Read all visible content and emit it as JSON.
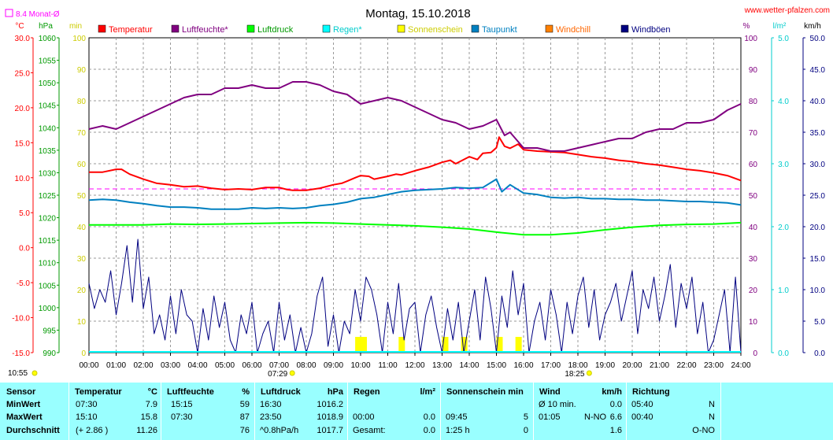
{
  "header": {
    "title": "Montag, 15.10.2018",
    "site": "www.wetter-pfalzen.com",
    "month_avg_label": "8.4 Monat-Ø"
  },
  "axes": {
    "temp": {
      "unit": "°C",
      "ticks": [
        "30.0",
        "25.0",
        "20.0",
        "15.0",
        "10.0",
        "5.0",
        "0.0",
        "-5.0",
        "-10.0",
        "-15.0"
      ],
      "color": "#ff0000"
    },
    "pressure": {
      "unit": "hPa",
      "ticks": [
        "1060",
        "1055",
        "1050",
        "1045",
        "1040",
        "1035",
        "1030",
        "1025",
        "1020",
        "1015",
        "1010",
        "1005",
        "1000",
        "995",
        "990"
      ],
      "color": "#009900"
    },
    "minutes": {
      "unit": "min",
      "ticks": [
        "100",
        "90",
        "80",
        "70",
        "60",
        "50",
        "40",
        "30",
        "20",
        "10",
        "0"
      ],
      "color": "#cccc00"
    },
    "humidity": {
      "unit": "%",
      "ticks": [
        "100",
        "90",
        "80",
        "70",
        "60",
        "50",
        "40",
        "30",
        "20",
        "10",
        "0"
      ],
      "color": "#800080"
    },
    "rain": {
      "unit": "l/m²",
      "ticks": [
        "5.0",
        "4.0",
        "3.0",
        "2.0",
        "1.0",
        "0.0"
      ],
      "color": "#00cccc"
    },
    "wind": {
      "unit": "km/h",
      "ticks": [
        "50.0",
        "45.0",
        "40.0",
        "35.0",
        "30.0",
        "25.0",
        "20.0",
        "15.0",
        "10.0",
        "5.0",
        "0.0"
      ],
      "color": "#000080"
    },
    "time_ticks": [
      "00:00",
      "01:00",
      "02:00",
      "03:00",
      "04:00",
      "05:00",
      "06:00",
      "07:00",
      "08:00",
      "09:00",
      "10:00",
      "11:00",
      "12:00",
      "13:00",
      "14:00",
      "15:00",
      "16:00",
      "17:00",
      "18:00",
      "19:00",
      "20:00",
      "21:00",
      "22:00",
      "23:00",
      "24:00"
    ],
    "sunshine_total": "10:55",
    "sunrise": "07:29",
    "sunset": "18:25"
  },
  "legend": [
    {
      "label": "Temperatur",
      "color": "#ff0000",
      "text_color": "#ff0000"
    },
    {
      "label": "Luftfeuchte*",
      "color": "#800080",
      "text_color": "#800080"
    },
    {
      "label": "Luftdruck",
      "color": "#00ff00",
      "text_color": "#009900"
    },
    {
      "label": "Regen*",
      "color": "#00ffff",
      "text_color": "#00cccc"
    },
    {
      "label": "Sonnenschein",
      "color": "#ffff00",
      "text_color": "#cccc00"
    },
    {
      "label": "Taupunkt",
      "color": "#0080c0",
      "text_color": "#0080c0"
    },
    {
      "label": "Windchill",
      "color": "#ff8000",
      "text_color": "#ff6600"
    },
    {
      "label": "Windböen",
      "color": "#000080",
      "text_color": "#000080"
    }
  ],
  "chart_data": {
    "type": "line",
    "x_range": [
      "00:00",
      "24:00"
    ],
    "grid": true,
    "month_average_temperature": 8.4,
    "series": [
      {
        "name": "Temperatur",
        "unit": "°C",
        "color": "#ff0000",
        "x": [
          0,
          0.5,
          1,
          1.2,
          1.5,
          2,
          2.5,
          3,
          3.5,
          4,
          4.5,
          5,
          5.5,
          6,
          6.5,
          7,
          7.3,
          7.5,
          8,
          8.5,
          9,
          9.3,
          9.5,
          9.8,
          10,
          10.3,
          10.5,
          11,
          11.3,
          11.5,
          12,
          12.5,
          13,
          13.3,
          13.5,
          14,
          14.3,
          14.5,
          14.8,
          15,
          15.1,
          15.3,
          15.5,
          15.8,
          16,
          16.5,
          17,
          17.5,
          18,
          18.5,
          19,
          19.5,
          20,
          20.5,
          21,
          21.5,
          22,
          22.5,
          23,
          23.5,
          24
        ],
        "y": [
          10.8,
          10.8,
          11.2,
          11.2,
          10.5,
          9.8,
          9.2,
          9.0,
          8.7,
          8.8,
          8.5,
          8.3,
          8.4,
          8.3,
          8.6,
          8.6,
          8.3,
          8.2,
          8.2,
          8.5,
          9.0,
          9.2,
          9.5,
          10.0,
          10.3,
          10.2,
          9.8,
          10.2,
          10.5,
          10.4,
          11.0,
          11.5,
          12.2,
          12.5,
          12.0,
          13.0,
          12.6,
          13.5,
          13.6,
          14.3,
          15.8,
          14.5,
          14.2,
          14.8,
          14.0,
          13.8,
          13.7,
          13.6,
          13.3,
          13.0,
          12.8,
          12.5,
          12.3,
          12.0,
          11.8,
          11.5,
          11.2,
          11.0,
          10.7,
          10.3,
          9.6
        ]
      },
      {
        "name": "Luftfeuchte*",
        "unit": "%",
        "color": "#800080",
        "x": [
          0,
          0.5,
          1,
          1.5,
          2,
          2.5,
          3,
          3.5,
          4,
          4.5,
          5,
          5.5,
          6,
          6.5,
          7,
          7.5,
          8,
          8.5,
          9,
          9.5,
          10,
          10.5,
          11,
          11.5,
          12,
          12.5,
          13,
          13.5,
          14,
          14.5,
          15,
          15.3,
          15.5,
          16,
          16.5,
          17,
          17.5,
          18,
          18.5,
          19,
          19.5,
          20,
          20.5,
          21,
          21.5,
          22,
          22.5,
          23,
          23.5,
          24
        ],
        "y": [
          71,
          72,
          71,
          73,
          75,
          77,
          79,
          81,
          82,
          82,
          84,
          84,
          85,
          84,
          84,
          86,
          86,
          85,
          83,
          82,
          79,
          80,
          81,
          80,
          78,
          76,
          74,
          73,
          71,
          72,
          74,
          69,
          70,
          65,
          65,
          64,
          64,
          65,
          66,
          67,
          68,
          68,
          70,
          71,
          71,
          73,
          73,
          74,
          77,
          79
        ]
      },
      {
        "name": "Luftdruck",
        "unit": "hPa",
        "color": "#00ff00",
        "x": [
          0,
          1,
          2,
          3,
          4,
          5,
          6,
          7,
          8,
          9,
          10,
          11,
          12,
          13,
          14,
          15,
          16,
          17,
          18,
          19,
          20,
          21,
          22,
          23,
          24
        ],
        "y": [
          1018.4,
          1018.4,
          1018.4,
          1018.6,
          1018.5,
          1018.6,
          1018.7,
          1018.8,
          1018.9,
          1018.8,
          1018.6,
          1018.4,
          1018.2,
          1017.9,
          1017.5,
          1016.8,
          1016.2,
          1016.2,
          1016.6,
          1017.3,
          1017.9,
          1018.3,
          1018.5,
          1018.6,
          1018.9
        ]
      },
      {
        "name": "Taupunkt",
        "unit": "°C",
        "color": "#0080c0",
        "x": [
          0,
          0.5,
          1,
          1.5,
          2,
          2.5,
          3,
          3.5,
          4,
          4.5,
          5,
          5.5,
          6,
          6.5,
          7,
          7.5,
          8,
          8.5,
          9,
          9.5,
          10,
          10.5,
          11,
          11.5,
          12,
          12.5,
          13,
          13.5,
          14,
          14.5,
          15,
          15.2,
          15.5,
          16,
          16.5,
          17,
          17.5,
          18,
          18.5,
          19,
          19.5,
          20,
          20.5,
          21,
          21.5,
          22,
          22.5,
          23,
          23.5,
          24
        ],
        "y": [
          6.8,
          6.9,
          6.8,
          6.5,
          6.3,
          6.0,
          5.8,
          5.8,
          5.7,
          5.5,
          5.5,
          5.5,
          5.7,
          5.6,
          5.7,
          5.6,
          5.7,
          6.0,
          6.2,
          6.5,
          7.0,
          7.2,
          7.6,
          8.0,
          8.2,
          8.3,
          8.4,
          8.6,
          8.5,
          8.6,
          9.8,
          8.0,
          9.0,
          7.8,
          7.6,
          7.2,
          7.1,
          7.2,
          7.0,
          7.0,
          6.9,
          6.9,
          6.8,
          6.8,
          6.7,
          6.6,
          6.6,
          6.5,
          6.4,
          6.1
        ]
      },
      {
        "name": "Windböen",
        "unit": "km/h",
        "color": "#000080",
        "x": [
          0,
          0.2,
          0.4,
          0.6,
          0.8,
          1.0,
          1.2,
          1.4,
          1.6,
          1.8,
          2.0,
          2.2,
          2.4,
          2.6,
          2.8,
          3.0,
          3.2,
          3.4,
          3.6,
          3.8,
          4.0,
          4.2,
          4.4,
          4.6,
          4.8,
          5.0,
          5.2,
          5.4,
          5.6,
          5.8,
          6.0,
          6.2,
          6.4,
          6.6,
          6.8,
          7.0,
          7.2,
          7.4,
          7.6,
          7.8,
          8.0,
          8.2,
          8.4,
          8.6,
          8.8,
          9.0,
          9.2,
          9.4,
          9.6,
          9.8,
          10.0,
          10.2,
          10.4,
          10.6,
          10.8,
          11.0,
          11.2,
          11.4,
          11.6,
          11.8,
          12.0,
          12.2,
          12.4,
          12.6,
          12.8,
          13.0,
          13.2,
          13.4,
          13.6,
          13.8,
          14.0,
          14.2,
          14.4,
          14.6,
          14.8,
          15.0,
          15.2,
          15.4,
          15.6,
          15.8,
          16.0,
          16.2,
          16.4,
          16.6,
          16.8,
          17.0,
          17.2,
          17.4,
          17.6,
          17.8,
          18.0,
          18.2,
          18.4,
          18.6,
          18.8,
          19.0,
          19.2,
          19.4,
          19.6,
          19.8,
          20.0,
          20.2,
          20.4,
          20.6,
          20.8,
          21.0,
          21.2,
          21.4,
          21.6,
          21.8,
          22.0,
          22.2,
          22.4,
          22.6,
          22.8,
          23.0,
          23.2,
          23.4,
          23.6,
          23.8,
          24.0
        ],
        "y": [
          11,
          7,
          10,
          8,
          13,
          6,
          11,
          17,
          8,
          18,
          7,
          12,
          3,
          6,
          2,
          9,
          3,
          10,
          6,
          5,
          0,
          7,
          2,
          9,
          4,
          8,
          2,
          0,
          6,
          3,
          8,
          0,
          3,
          5,
          0,
          8,
          2,
          6,
          0,
          4,
          0,
          3,
          9,
          12,
          1,
          6,
          0,
          5,
          3,
          10,
          5,
          12,
          10,
          6,
          0,
          8,
          3,
          11,
          2,
          7,
          8,
          0,
          6,
          9,
          4,
          0,
          7,
          2,
          8,
          0,
          5,
          10,
          2,
          12,
          7,
          0,
          9,
          4,
          13,
          6,
          11,
          0,
          5,
          8,
          2,
          10,
          6,
          0,
          8,
          3,
          9,
          12,
          4,
          10,
          2,
          6,
          8,
          11,
          5,
          9,
          13,
          3,
          10,
          7,
          12,
          5,
          9,
          14,
          4,
          11,
          7,
          12,
          3,
          8,
          0,
          2,
          6,
          10,
          0,
          12,
          0
        ]
      }
    ],
    "sunshine_hours": [
      9.8,
      10.0,
      11.4,
      13.0,
      13.7,
      15.0,
      15.7
    ],
    "stats_table": {
      "columns": [
        "Sensor",
        "Temperatur",
        "Luftfeuchte",
        "Luftdruck",
        "Regen",
        "Sonnenschein min",
        "Wind",
        "Richtung"
      ],
      "rows": [
        "MinWert",
        "MaxWert",
        "Durchschnitt"
      ]
    }
  },
  "stats": {
    "sensor": {
      "title": "Sensor",
      "rows": [
        "MinWert",
        "MaxWert",
        "Durchschnitt"
      ]
    },
    "temperatur": {
      "title": "Temperatur",
      "unit": "°C",
      "a": [
        "07:30",
        "15:10",
        "(+ 2.86 )"
      ],
      "b": [
        "7.9",
        "15.8",
        "11.26"
      ]
    },
    "luftfeuchte": {
      "title": "Luftfeuchte",
      "unit": "%",
      "a": [
        "15:15",
        "07:30",
        ""
      ],
      "b": [
        "59",
        "87",
        "76"
      ]
    },
    "luftdruck": {
      "title": "Luftdruck",
      "unit": "hPa",
      "a": [
        "16:30",
        "23:50",
        "^0.8hPa/h"
      ],
      "b": [
        "1016.2",
        "1018.9",
        "1017.7"
      ]
    },
    "regen": {
      "title": "Regen",
      "unit": "l/m²",
      "a": [
        "",
        "00:00",
        "Gesamt:"
      ],
      "b": [
        "",
        "0.0",
        "0.0"
      ]
    },
    "sonnenschein": {
      "title": "Sonnenschein min",
      "a": [
        "",
        "09:45",
        "1:25 h"
      ],
      "b": [
        "",
        "5",
        "0"
      ]
    },
    "wind": {
      "title": "Wind",
      "unit": "km/h",
      "a": [
        "Ø 10 min.",
        "01:05",
        ""
      ],
      "m": [
        "",
        "N-NO",
        ""
      ],
      "b": [
        "0.0",
        "6.6",
        "1.6"
      ]
    },
    "richtung": {
      "title": "Richtung",
      "a": [
        "05:40",
        "00:40",
        ""
      ],
      "b": [
        "N",
        "N",
        "O-NO"
      ]
    }
  }
}
